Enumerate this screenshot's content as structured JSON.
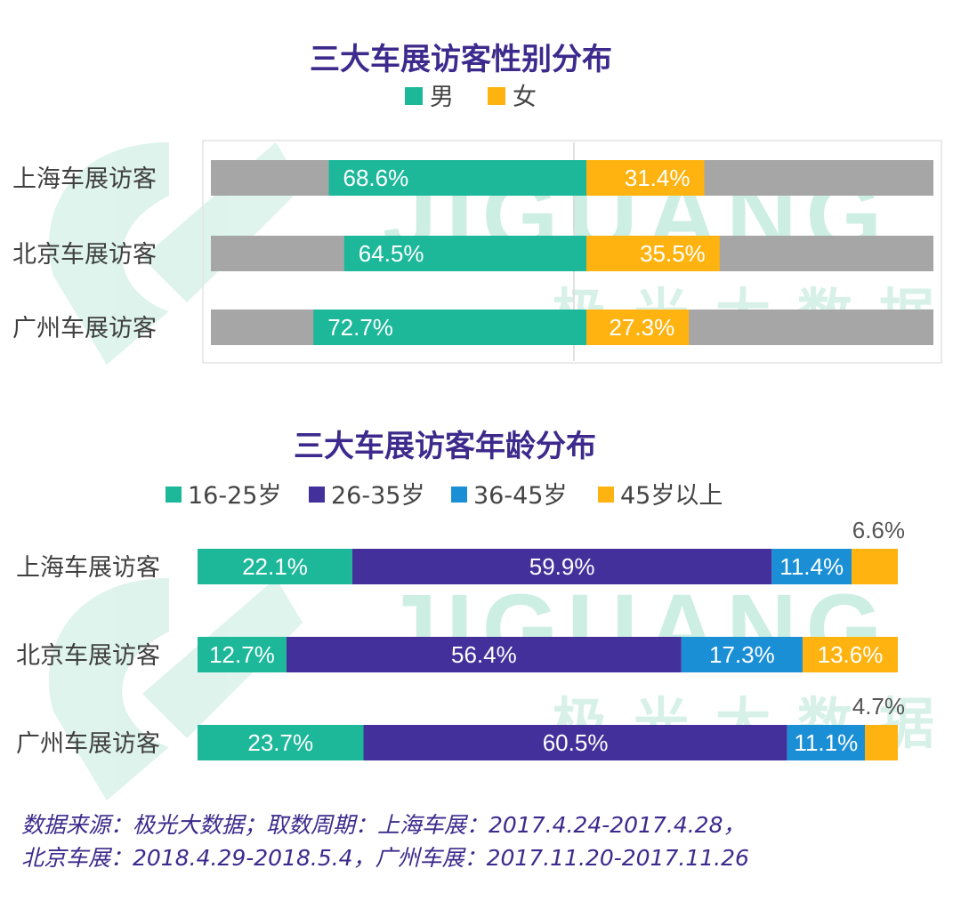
{
  "watermark": {
    "brand": "JIGUANG",
    "brand_cn": "极光大数据"
  },
  "colors": {
    "male": "#1db89a",
    "female": "#ffb310",
    "track": "#a6a6a6",
    "age_16_25": "#1db89a",
    "age_26_35": "#44309a",
    "age_36_45": "#1a8fd6",
    "age_45_plus": "#ffb310",
    "title": "#3d2a8c",
    "watermark": "#cdeee3"
  },
  "chart_data": [
    {
      "type": "bar",
      "orientation": "horizontal",
      "layout": "diverging",
      "title": "三大车展访客性别分布",
      "legend_position": "top-center",
      "categories": [
        "上海车展访客",
        "北京车展访客",
        "广州车展访客"
      ],
      "series": [
        {
          "name": "男",
          "values": [
            68.6,
            64.5,
            72.7
          ],
          "labels": [
            "68.6%",
            "64.5%",
            "72.7%"
          ]
        },
        {
          "name": "女",
          "values": [
            31.4,
            35.5,
            27.3
          ],
          "labels": [
            "31.4%",
            "35.5%",
            "27.3%"
          ]
        }
      ],
      "xlim": [
        -100,
        100
      ]
    },
    {
      "type": "bar",
      "orientation": "horizontal",
      "layout": "stacked-100",
      "title": "三大车展访客年龄分布",
      "legend_position": "top-center",
      "categories": [
        "上海车展访客",
        "北京车展访客",
        "广州车展访客"
      ],
      "series": [
        {
          "name": "16-25岁",
          "values": [
            22.1,
            12.7,
            23.7
          ],
          "labels": [
            "22.1%",
            "12.7%",
            "23.7%"
          ]
        },
        {
          "name": "26-35岁",
          "values": [
            59.9,
            56.4,
            60.5
          ],
          "labels": [
            "59.9%",
            "56.4%",
            "60.5%"
          ]
        },
        {
          "name": "36-45岁",
          "values": [
            11.4,
            17.3,
            11.1
          ],
          "labels": [
            "11.4%",
            "17.3%",
            "11.1%"
          ]
        },
        {
          "name": "45岁以上",
          "values": [
            6.6,
            13.6,
            4.7
          ],
          "labels": [
            "6.6%",
            "13.6%",
            "4.7%"
          ]
        }
      ],
      "xlim": [
        0,
        100
      ]
    }
  ],
  "source_note": {
    "line1": "数据来源：极光大数据；取数周期：上海车展：2017.4.24-2017.4.28，",
    "line2": "北京车展：2018.4.29-2018.5.4，广州车展：2017.11.20-2017.11.26"
  }
}
